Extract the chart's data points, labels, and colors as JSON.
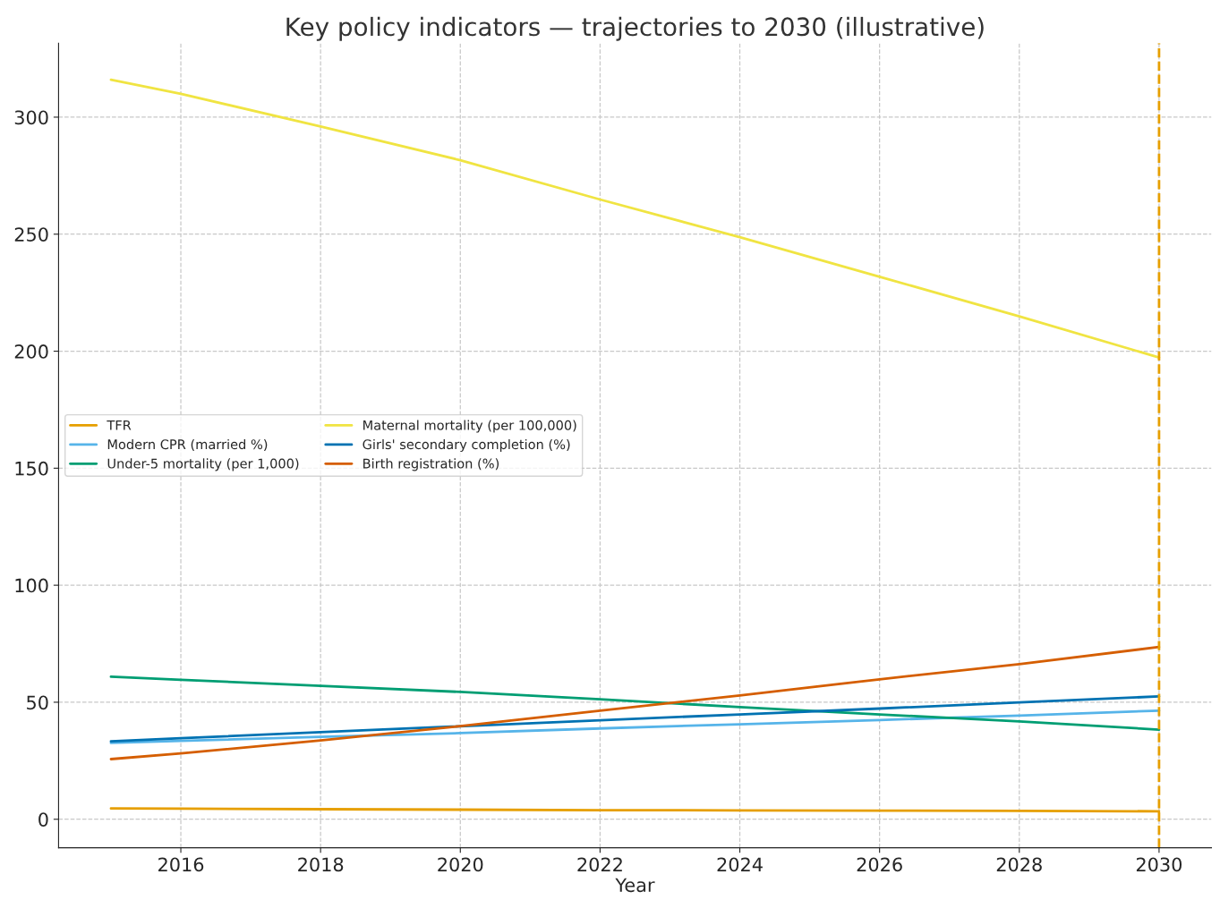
{
  "chart_data": {
    "type": "line",
    "title": "Key policy indicators — trajectories to 2030 (illustrative)",
    "xlabel": "Year",
    "x": [
      2015,
      2016,
      2018,
      2020,
      2022,
      2024,
      2026,
      2028,
      2030
    ],
    "series": [
      {
        "name": "TFR",
        "color": "#e69f00",
        "values": [
          4.6,
          4.5,
          4.3,
          4.1,
          3.9,
          3.8,
          3.7,
          3.6,
          3.4
        ]
      },
      {
        "name": "Modern CPR (married %)",
        "color": "#56b4e9",
        "values": [
          32.6,
          33.5,
          35.2,
          36.8,
          38.8,
          40.6,
          42.4,
          44.3,
          46.4
        ]
      },
      {
        "name": "Under-5 mortality (per 1,000)",
        "color": "#009e73",
        "values": [
          60.9,
          59.6,
          57.0,
          54.4,
          51.3,
          47.9,
          44.8,
          41.8,
          38.3
        ]
      },
      {
        "name": "Maternal mortality (per 100,000)",
        "color": "#f0e442",
        "values": [
          316,
          310,
          296,
          281.6,
          264.8,
          248.7,
          231.8,
          214.9,
          197.3
        ]
      },
      {
        "name": "Girls' secondary completion (%)",
        "color": "#0072b2",
        "x": [
          2015,
          2016,
          2018,
          2022,
          2024,
          2026,
          2028,
          2030
        ],
        "values": [
          33.3,
          34.6,
          37.2,
          42.3,
          44.8,
          47.3,
          49.9,
          52.5
        ]
      },
      {
        "name": "Birth registration (%)",
        "color": "#d55e00",
        "values": [
          25.7,
          28.1,
          33.7,
          39.8,
          46.4,
          52.9,
          59.8,
          66.3,
          73.6
        ]
      }
    ],
    "ref_lines": [
      {
        "axis": "x",
        "value": 2030,
        "color": "#e69f00",
        "line_style": "dashed"
      }
    ],
    "xlim": [
      2014.25,
      2030.75
    ],
    "ylim": [
      -12.2,
      331.6
    ],
    "xticks": [
      2016,
      2018,
      2020,
      2022,
      2024,
      2026,
      2028,
      2030
    ],
    "yticks": [
      0,
      50,
      100,
      150,
      200,
      250,
      300
    ],
    "grid": true,
    "legend": "left",
    "line_style": "solid"
  }
}
